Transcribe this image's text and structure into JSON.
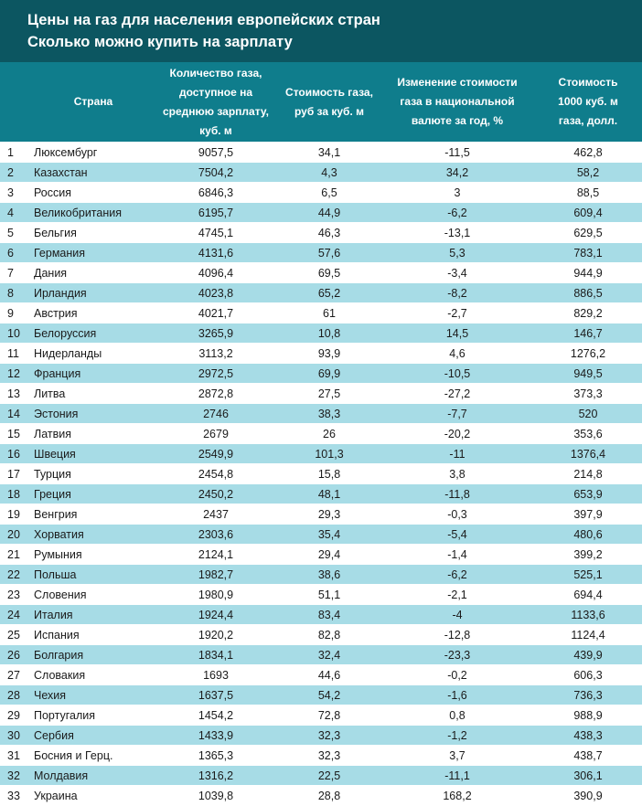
{
  "title": {
    "line1": "Цены на газ для населения европейских стран",
    "line2": "Сколько можно купить на зарплату"
  },
  "headers": {
    "country": "Страна",
    "volume": "Количество газа, доступное на среднюю зарплату, куб. м",
    "price": "Стоимость газа, руб за куб. м",
    "change": "Изменение стоимости газа в национальной валюте за год, %",
    "cost": "Стоимость 1000 куб. м газа, долл."
  },
  "rows": [
    {
      "num": "1",
      "country": "Люксембург",
      "volume": "9057,5",
      "price": "34,1",
      "change": "-11,5",
      "cost": "462,8"
    },
    {
      "num": "2",
      "country": "Казахстан",
      "volume": "7504,2",
      "price": "4,3",
      "change": "34,2",
      "cost": "58,2"
    },
    {
      "num": "3",
      "country": "Россия",
      "volume": "6846,3",
      "price": "6,5",
      "change": "3",
      "cost": "88,5"
    },
    {
      "num": "4",
      "country": "Великобритания",
      "volume": "6195,7",
      "price": "44,9",
      "change": "-6,2",
      "cost": "609,4"
    },
    {
      "num": "5",
      "country": "Бельгия",
      "volume": "4745,1",
      "price": "46,3",
      "change": "-13,1",
      "cost": "629,5"
    },
    {
      "num": "6",
      "country": "Германия",
      "volume": "4131,6",
      "price": "57,6",
      "change": "5,3",
      "cost": "783,1"
    },
    {
      "num": "7",
      "country": "Дания",
      "volume": "4096,4",
      "price": "69,5",
      "change": "-3,4",
      "cost": "944,9"
    },
    {
      "num": "8",
      "country": "Ирландия",
      "volume": "4023,8",
      "price": "65,2",
      "change": "-8,2",
      "cost": "886,5"
    },
    {
      "num": "9",
      "country": "Австрия",
      "volume": "4021,7",
      "price": "61",
      "change": "-2,7",
      "cost": "829,2"
    },
    {
      "num": "10",
      "country": "Белоруссия",
      "volume": "3265,9",
      "price": "10,8",
      "change": "14,5",
      "cost": "146,7"
    },
    {
      "num": "11",
      "country": "Нидерланды",
      "volume": "3113,2",
      "price": "93,9",
      "change": "4,6",
      "cost": "1276,2"
    },
    {
      "num": "12",
      "country": "Франция",
      "volume": "2972,5",
      "price": "69,9",
      "change": "-10,5",
      "cost": "949,5"
    },
    {
      "num": "13",
      "country": "Литва",
      "volume": "2872,8",
      "price": "27,5",
      "change": "-27,2",
      "cost": "373,3"
    },
    {
      "num": "14",
      "country": "Эстония",
      "volume": "2746",
      "price": "38,3",
      "change": "-7,7",
      "cost": "520"
    },
    {
      "num": "15",
      "country": "Латвия",
      "volume": "2679",
      "price": "26",
      "change": "-20,2",
      "cost": "353,6"
    },
    {
      "num": "16",
      "country": "Швеция",
      "volume": "2549,9",
      "price": "101,3",
      "change": "-11",
      "cost": "1376,4"
    },
    {
      "num": "17",
      "country": "Турция",
      "volume": "2454,8",
      "price": "15,8",
      "change": "3,8",
      "cost": "214,8"
    },
    {
      "num": "18",
      "country": "Греция",
      "volume": "2450,2",
      "price": "48,1",
      "change": "-11,8",
      "cost": "653,9"
    },
    {
      "num": "19",
      "country": "Венгрия",
      "volume": "2437",
      "price": "29,3",
      "change": "-0,3",
      "cost": "397,9"
    },
    {
      "num": "20",
      "country": "Хорватия",
      "volume": "2303,6",
      "price": "35,4",
      "change": "-5,4",
      "cost": "480,6"
    },
    {
      "num": "21",
      "country": "Румыния",
      "volume": "2124,1",
      "price": "29,4",
      "change": "-1,4",
      "cost": "399,2"
    },
    {
      "num": "22",
      "country": "Польша",
      "volume": "1982,7",
      "price": "38,6",
      "change": "-6,2",
      "cost": "525,1"
    },
    {
      "num": "23",
      "country": "Словения",
      "volume": "1980,9",
      "price": "51,1",
      "change": "-2,1",
      "cost": "694,4"
    },
    {
      "num": "24",
      "country": "Италия",
      "volume": "1924,4",
      "price": "83,4",
      "change": "-4",
      "cost": "1133,6"
    },
    {
      "num": "25",
      "country": "Испания",
      "volume": "1920,2",
      "price": "82,8",
      "change": "-12,8",
      "cost": "1124,4"
    },
    {
      "num": "26",
      "country": "Болгария",
      "volume": "1834,1",
      "price": "32,4",
      "change": "-23,3",
      "cost": "439,9"
    },
    {
      "num": "27",
      "country": "Словакия",
      "volume": "1693",
      "price": "44,6",
      "change": "-0,2",
      "cost": "606,3"
    },
    {
      "num": "28",
      "country": "Чехия",
      "volume": "1637,5",
      "price": "54,2",
      "change": "-1,6",
      "cost": "736,3"
    },
    {
      "num": "29",
      "country": "Португалия",
      "volume": "1454,2",
      "price": "72,8",
      "change": "0,8",
      "cost": "988,9"
    },
    {
      "num": "30",
      "country": "Сербия",
      "volume": "1433,9",
      "price": "32,3",
      "change": "-1,2",
      "cost": "438,3"
    },
    {
      "num": "31",
      "country": "Босния и Герц.",
      "volume": "1365,3",
      "price": "32,3",
      "change": "3,7",
      "cost": "438,7"
    },
    {
      "num": "32",
      "country": "Молдавия",
      "volume": "1316,2",
      "price": "22,5",
      "change": "-11,1",
      "cost": "306,1"
    },
    {
      "num": "33",
      "country": "Украина",
      "volume": "1039,8",
      "price": "28,8",
      "change": "168,2",
      "cost": "390,9"
    }
  ]
}
